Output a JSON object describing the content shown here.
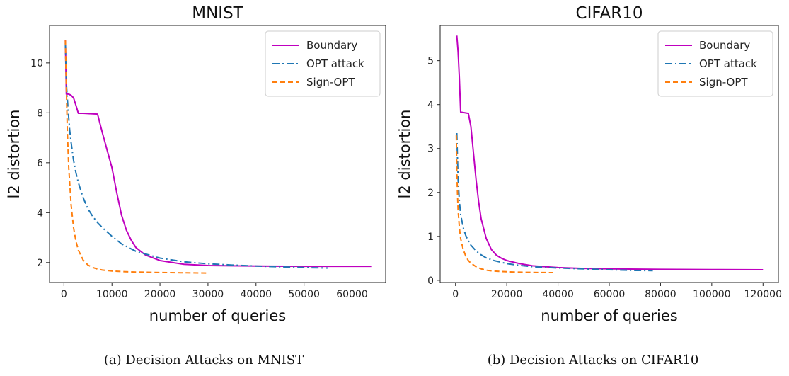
{
  "chart_data": [
    {
      "type": "line",
      "title": "MNIST",
      "xlabel": "number of queries",
      "ylabel": "l2 distortion",
      "caption": "(a) Decision Attacks on MNIST",
      "xlim": [
        -3000,
        67000
      ],
      "ylim": [
        1.2,
        11.5
      ],
      "xticks": [
        0,
        10000,
        20000,
        30000,
        40000,
        50000,
        60000
      ],
      "yticks": [
        2,
        4,
        6,
        8,
        10
      ],
      "legend_position": "top-right",
      "grid": false,
      "series": [
        {
          "name": "Boundary",
          "color": "#bf00bf",
          "style": "solid",
          "x": [
            300,
            500,
            1000,
            1500,
            2000,
            2500,
            3000,
            4000,
            5000,
            6000,
            7000,
            8000,
            9000,
            10000,
            11000,
            12000,
            13000,
            14000,
            15000,
            17000,
            20000,
            25000,
            30000,
            40000,
            50000,
            64000
          ],
          "y": [
            10.9,
            8.75,
            8.75,
            8.7,
            8.6,
            8.3,
            7.98,
            7.98,
            7.97,
            7.96,
            7.95,
            7.2,
            6.5,
            5.8,
            4.8,
            3.9,
            3.3,
            2.9,
            2.6,
            2.3,
            2.08,
            1.93,
            1.88,
            1.86,
            1.85,
            1.85
          ]
        },
        {
          "name": "OPT attack",
          "color": "#1f77b4",
          "style": "dashdot",
          "x": [
            300,
            500,
            800,
            1200,
            1500,
            2000,
            2500,
            3000,
            4000,
            5000,
            6000,
            7000,
            8000,
            10000,
            12000,
            15000,
            20000,
            25000,
            30000,
            35000,
            40000,
            45000,
            50000,
            55000
          ],
          "y": [
            10.8,
            9.2,
            8.3,
            7.3,
            6.8,
            6.1,
            5.6,
            5.2,
            4.6,
            4.15,
            3.85,
            3.6,
            3.4,
            3.05,
            2.75,
            2.45,
            2.18,
            2.03,
            1.95,
            1.9,
            1.86,
            1.83,
            1.8,
            1.78
          ]
        },
        {
          "name": "Sign-OPT",
          "color": "#ff7f0e",
          "style": "dashed",
          "x": [
            300,
            500,
            700,
            1000,
            1500,
            2000,
            2500,
            3000,
            4000,
            5000,
            6000,
            7000,
            8000,
            10000,
            12000,
            15000,
            20000,
            25000,
            30000
          ],
          "y": [
            10.9,
            9.0,
            7.3,
            5.8,
            4.3,
            3.4,
            2.85,
            2.5,
            2.1,
            1.9,
            1.8,
            1.74,
            1.7,
            1.66,
            1.64,
            1.62,
            1.6,
            1.59,
            1.58
          ]
        }
      ]
    },
    {
      "type": "line",
      "title": "CIFAR10",
      "xlabel": "number of queries",
      "ylabel": "l2 distortion",
      "caption": "(b) Decision Attacks on CIFAR10",
      "xlim": [
        -6000,
        126000
      ],
      "ylim": [
        -0.05,
        5.8
      ],
      "xticks": [
        0,
        20000,
        40000,
        60000,
        80000,
        100000,
        120000
      ],
      "yticks": [
        0,
        1,
        2,
        3,
        4,
        5
      ],
      "legend_position": "top-right",
      "grid": false,
      "series": [
        {
          "name": "Boundary",
          "color": "#bf00bf",
          "style": "solid",
          "x": [
            500,
            1000,
            1500,
            2000,
            3000,
            4000,
            5000,
            6000,
            7000,
            8000,
            9000,
            10000,
            12000,
            14000,
            16000,
            18000,
            20000,
            25000,
            30000,
            40000,
            50000,
            60000,
            80000,
            100000,
            120000
          ],
          "y": [
            5.57,
            5.2,
            4.6,
            3.83,
            3.82,
            3.81,
            3.8,
            3.5,
            2.9,
            2.3,
            1.8,
            1.4,
            0.95,
            0.7,
            0.57,
            0.5,
            0.45,
            0.38,
            0.33,
            0.29,
            0.27,
            0.26,
            0.25,
            0.245,
            0.24
          ]
        },
        {
          "name": "OPT attack",
          "color": "#1f77b4",
          "style": "dashdot",
          "x": [
            500,
            700,
            1000,
            1500,
            2000,
            3000,
            4000,
            5000,
            6000,
            8000,
            10000,
            12000,
            15000,
            20000,
            25000,
            30000,
            40000,
            50000,
            60000,
            70000,
            77000
          ],
          "y": [
            3.35,
            2.9,
            2.3,
            1.8,
            1.5,
            1.2,
            1.02,
            0.9,
            0.8,
            0.67,
            0.58,
            0.51,
            0.45,
            0.38,
            0.34,
            0.31,
            0.28,
            0.26,
            0.24,
            0.225,
            0.22
          ]
        },
        {
          "name": "Sign-OPT",
          "color": "#ff7f0e",
          "style": "dashed",
          "x": [
            300,
            500,
            800,
            1000,
            1500,
            2000,
            3000,
            4000,
            5000,
            6000,
            8000,
            10000,
            12000,
            15000,
            20000,
            25000,
            30000,
            38000
          ],
          "y": [
            3.3,
            2.5,
            1.9,
            1.6,
            1.2,
            0.95,
            0.7,
            0.55,
            0.45,
            0.39,
            0.31,
            0.26,
            0.23,
            0.21,
            0.195,
            0.185,
            0.18,
            0.175
          ]
        }
      ]
    }
  ]
}
